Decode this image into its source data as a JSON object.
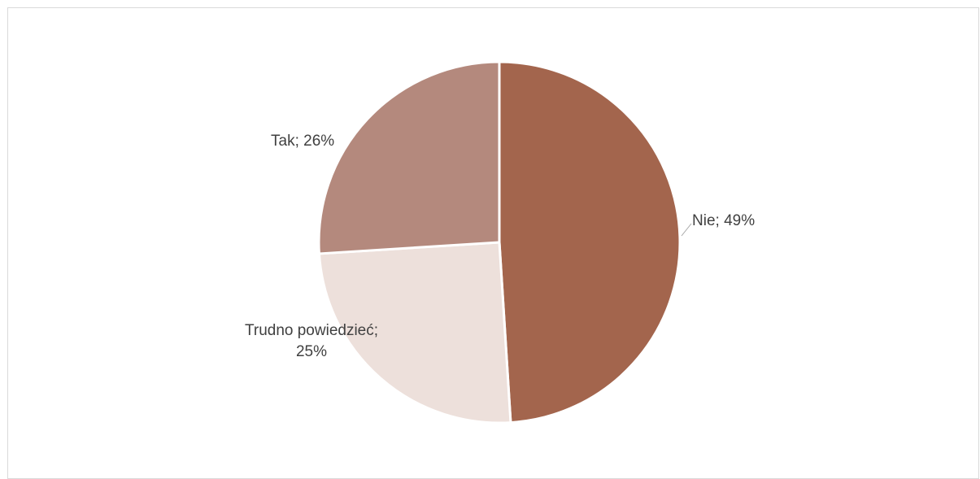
{
  "chart_data": {
    "type": "pie",
    "title": "",
    "categories": [
      "Nie",
      "Trudno powiedzieć",
      "Tak"
    ],
    "values": [
      49,
      25,
      26
    ],
    "unit": "%",
    "colors": [
      "#A3654D",
      "#EDE0DB",
      "#B4897D"
    ],
    "start_angle_deg": 0,
    "direction": "clockwise",
    "legend": "none",
    "data_labels": [
      {
        "category": "Nie",
        "text": "Nie; 49%"
      },
      {
        "category": "Trudno powiedzieć",
        "line1": "Trudno powiedzieć;",
        "line2": "25%"
      },
      {
        "category": "Tak",
        "text": "Tak; 26%"
      }
    ]
  }
}
